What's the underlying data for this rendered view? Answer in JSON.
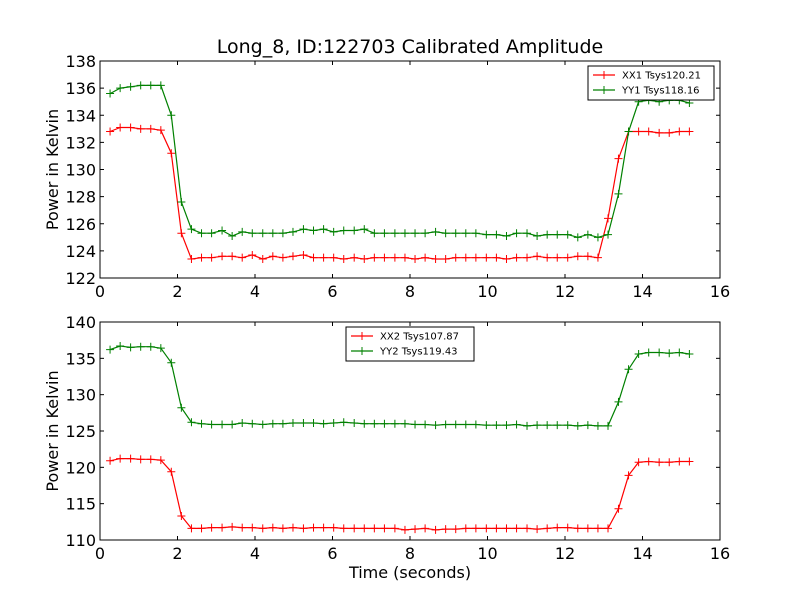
{
  "figure": {
    "title": "Long_8, ID:122703 Calibrated Amplitude",
    "xlabel": "Time (seconds)",
    "colors": {
      "red": "#ff0000",
      "green": "#008000"
    }
  },
  "chart_data": [
    {
      "type": "line",
      "title": "Long_8, ID:122703 Calibrated Amplitude",
      "xlabel": "",
      "ylabel": "Power in Kelvin",
      "xlim": [
        0,
        16
      ],
      "ylim": [
        122,
        138
      ],
      "xticks": [
        0,
        2,
        4,
        6,
        8,
        10,
        12,
        14,
        16
      ],
      "yticks": [
        122,
        124,
        126,
        128,
        130,
        132,
        134,
        136,
        138
      ],
      "grid": false,
      "legend": "top-right",
      "x": [
        0.26,
        0.52,
        0.79,
        1.05,
        1.31,
        1.57,
        1.84,
        2.1,
        2.36,
        2.62,
        2.88,
        3.15,
        3.41,
        3.67,
        3.93,
        4.2,
        4.46,
        4.72,
        4.98,
        5.25,
        5.51,
        5.77,
        6.03,
        6.29,
        6.56,
        6.82,
        7.08,
        7.34,
        7.61,
        7.87,
        8.13,
        8.39,
        8.66,
        8.92,
        9.18,
        9.44,
        9.7,
        9.97,
        10.23,
        10.49,
        10.75,
        11.02,
        11.28,
        11.54,
        11.8,
        12.07,
        12.33,
        12.59,
        12.85,
        13.11,
        13.38,
        13.64,
        13.9,
        14.16,
        14.43,
        14.69,
        14.95,
        15.21
      ],
      "series": [
        {
          "name": "XX1 Tsys120.21",
          "color": "#ff0000",
          "values": [
            132.8,
            133.1,
            133.1,
            133.0,
            133.0,
            132.9,
            131.2,
            125.3,
            123.4,
            123.5,
            123.5,
            123.6,
            123.6,
            123.5,
            123.7,
            123.4,
            123.6,
            123.5,
            123.6,
            123.7,
            123.5,
            123.5,
            123.5,
            123.4,
            123.5,
            123.4,
            123.5,
            123.5,
            123.5,
            123.5,
            123.4,
            123.5,
            123.4,
            123.4,
            123.5,
            123.5,
            123.5,
            123.5,
            123.5,
            123.4,
            123.5,
            123.5,
            123.6,
            123.5,
            123.5,
            123.5,
            123.6,
            123.6,
            123.5,
            126.4,
            130.8,
            132.8,
            132.8,
            132.8,
            132.7,
            132.7,
            132.8,
            132.8
          ]
        },
        {
          "name": "YY1 Tsys118.16",
          "color": "#008000",
          "values": [
            135.6,
            136.0,
            136.1,
            136.2,
            136.2,
            136.2,
            134.0,
            127.6,
            125.6,
            125.3,
            125.3,
            125.5,
            125.1,
            125.4,
            125.3,
            125.3,
            125.3,
            125.3,
            125.4,
            125.6,
            125.5,
            125.6,
            125.4,
            125.5,
            125.5,
            125.6,
            125.3,
            125.3,
            125.3,
            125.3,
            125.3,
            125.3,
            125.4,
            125.3,
            125.3,
            125.3,
            125.3,
            125.2,
            125.2,
            125.1,
            125.3,
            125.3,
            125.1,
            125.2,
            125.2,
            125.2,
            125.0,
            125.2,
            125.0,
            125.2,
            128.2,
            132.8,
            135.0,
            135.1,
            135.0,
            135.1,
            135.1,
            134.9
          ]
        }
      ]
    },
    {
      "type": "line",
      "title": "",
      "xlabel": "Time (seconds)",
      "ylabel": "Power in Kelvin",
      "xlim": [
        0,
        16
      ],
      "ylim": [
        110,
        140
      ],
      "xticks": [
        0,
        2,
        4,
        6,
        8,
        10,
        12,
        14,
        16
      ],
      "yticks": [
        110,
        115,
        120,
        125,
        130,
        135,
        140
      ],
      "grid": false,
      "legend": "top-center",
      "x": [
        0.26,
        0.52,
        0.79,
        1.05,
        1.31,
        1.57,
        1.84,
        2.1,
        2.36,
        2.62,
        2.88,
        3.15,
        3.41,
        3.67,
        3.93,
        4.2,
        4.46,
        4.72,
        4.98,
        5.25,
        5.51,
        5.77,
        6.03,
        6.29,
        6.56,
        6.82,
        7.08,
        7.34,
        7.61,
        7.87,
        8.13,
        8.39,
        8.66,
        8.92,
        9.18,
        9.44,
        9.7,
        9.97,
        10.23,
        10.49,
        10.75,
        11.02,
        11.28,
        11.54,
        11.8,
        12.07,
        12.33,
        12.59,
        12.85,
        13.11,
        13.38,
        13.64,
        13.9,
        14.16,
        14.43,
        14.69,
        14.95,
        15.21
      ],
      "series": [
        {
          "name": "XX2 Tsys107.87",
          "color": "#ff0000",
          "values": [
            120.9,
            121.2,
            121.2,
            121.1,
            121.1,
            121.0,
            119.4,
            113.3,
            111.6,
            111.6,
            111.7,
            111.7,
            111.8,
            111.7,
            111.7,
            111.6,
            111.7,
            111.6,
            111.7,
            111.6,
            111.7,
            111.7,
            111.7,
            111.6,
            111.6,
            111.6,
            111.6,
            111.6,
            111.6,
            111.4,
            111.5,
            111.6,
            111.4,
            111.5,
            111.5,
            111.6,
            111.6,
            111.6,
            111.6,
            111.6,
            111.6,
            111.6,
            111.5,
            111.6,
            111.7,
            111.7,
            111.6,
            111.6,
            111.6,
            111.6,
            114.3,
            118.9,
            120.7,
            120.8,
            120.7,
            120.7,
            120.8,
            120.8
          ]
        },
        {
          "name": "YY2 Tsys119.43",
          "color": "#008000",
          "values": [
            136.2,
            136.7,
            136.5,
            136.6,
            136.6,
            136.4,
            134.4,
            128.2,
            126.2,
            126.0,
            125.9,
            125.9,
            125.9,
            126.1,
            126.0,
            125.9,
            126.0,
            126.0,
            126.1,
            126.1,
            126.1,
            126.0,
            126.1,
            126.2,
            126.1,
            126.0,
            126.0,
            126.0,
            126.0,
            126.0,
            125.9,
            125.9,
            125.8,
            125.9,
            125.9,
            125.9,
            125.9,
            125.8,
            125.8,
            125.8,
            125.9,
            125.7,
            125.8,
            125.8,
            125.8,
            125.8,
            125.7,
            125.8,
            125.7,
            125.7,
            129.0,
            133.5,
            135.6,
            135.8,
            135.8,
            135.7,
            135.8,
            135.6
          ]
        }
      ]
    }
  ]
}
